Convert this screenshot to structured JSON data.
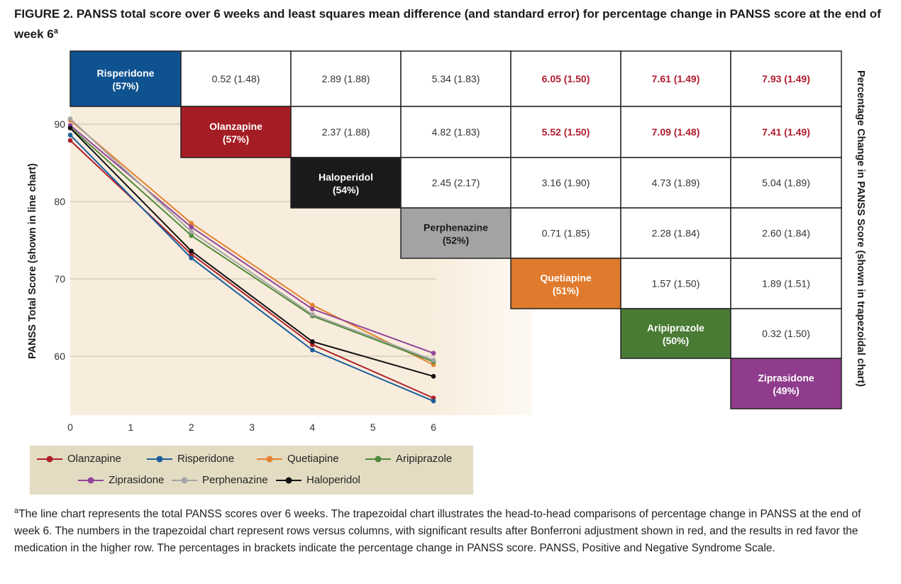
{
  "title": "FIGURE 2. PANSS total score over 6 weeks and least squares mean difference (and standard error) for percentage change in PANSS score at the end of week 6",
  "title_superscript": "a",
  "footnote_marker": "a",
  "footnote": "The line chart represents the total PANSS scores over 6 weeks. The trapezoidal chart illustrates the head-to-head comparisons of percentage change in PANSS at the end of week 6. The numbers in the trapezoidal chart represent rows versus columns, with significant results after Bonferroni adjustment shown in red, and the results in red favor the medication in the higher row. The percentages in brackets indicate the percentage change in PANSS score. PANSS, Positive and Negative Syndrome Scale.",
  "chart_data": [
    {
      "type": "line",
      "xlabel": "",
      "ylabel": "PANSS Total Score (shown in line chart)",
      "x": [
        0,
        2,
        4,
        6
      ],
      "x_ticks": [
        "0",
        "1",
        "2",
        "3",
        "4",
        "5",
        "6"
      ],
      "y_ticks": [
        "60",
        "70",
        "80",
        "90"
      ],
      "xlim": [
        0,
        6
      ],
      "ylim": [
        52.5,
        92.5
      ],
      "grid": "horizontal",
      "legend_position": "bottom",
      "series": [
        {
          "name": "Olanzapine",
          "color": "#b0202a",
          "values": [
            87.9,
            73.2,
            61.5,
            54.6
          ]
        },
        {
          "name": "Risperidone",
          "color": "#1b5e9a",
          "values": [
            88.6,
            72.7,
            60.8,
            54.2
          ]
        },
        {
          "name": "Quetiapine",
          "color": "#e5832f",
          "values": [
            90.5,
            77.2,
            66.6,
            58.9
          ]
        },
        {
          "name": "Aripiprazole",
          "color": "#4f8a3a",
          "values": [
            89.6,
            75.6,
            65.2,
            59.3
          ]
        },
        {
          "name": "Ziprasidone",
          "color": "#93459a",
          "values": [
            89.85,
            76.7,
            66.1,
            60.4
          ]
        },
        {
          "name": "Perphenazine",
          "color": "#a5a5a5",
          "values": [
            90.7,
            76.1,
            65.4,
            59.5
          ]
        },
        {
          "name": "Haloperidol",
          "color": "#111111",
          "values": [
            89.5,
            73.6,
            61.9,
            57.4
          ]
        }
      ]
    },
    {
      "type": "table",
      "ylabel": "Percentage Change in PANSS Score (shown in trapezoidal chart)",
      "significant_color": "#b01c2e",
      "rows": [
        {
          "drug": "Risperidone",
          "pct": "(57%)",
          "color": "#0f5290",
          "cells": [
            [
              "0.52 (1.48)",
              false
            ],
            [
              "2.89 (1.88)",
              false
            ],
            [
              "5.34 (1.83)",
              false
            ],
            [
              "6.05 (1.50)",
              true
            ],
            [
              "7.61 (1.49)",
              true
            ],
            [
              "7.93 (1.49)",
              true
            ]
          ]
        },
        {
          "drug": "Olanzapine",
          "pct": "(57%)",
          "color": "#a51d24",
          "cells": [
            [
              "2.37 (1.88)",
              false
            ],
            [
              "4.82 (1.83)",
              false
            ],
            [
              "5.52 (1.50)",
              true
            ],
            [
              "7.09 (1.48)",
              true
            ],
            [
              "7.41 (1.49)",
              true
            ]
          ]
        },
        {
          "drug": "Haloperidol",
          "pct": "(54%)",
          "color": "#1a1a1a",
          "cells": [
            [
              "2.45 (2.17)",
              false
            ],
            [
              "3.16 (1.90)",
              false
            ],
            [
              "4.73 (1.89)",
              false
            ],
            [
              "5.04 (1.89)",
              false
            ]
          ]
        },
        {
          "drug": "Perphenazine",
          "pct": "(52%)",
          "color": "#a3a3a3",
          "text_color": "#1a1a1a",
          "cells": [
            [
              "0.71 (1.85)",
              false
            ],
            [
              "2.28 (1.84)",
              false
            ],
            [
              "2.60 (1.84)",
              false
            ]
          ]
        },
        {
          "drug": "Quetiapine",
          "pct": "(51%)",
          "color": "#e07a2c",
          "cells": [
            [
              "1.57 (1.50)",
              false
            ],
            [
              "1.89 (1.51)",
              false
            ]
          ]
        },
        {
          "drug": "Aripiprazole",
          "pct": "(50%)",
          "color": "#4a7b35",
          "cells": [
            [
              "0.32 (1.50)",
              false
            ]
          ]
        },
        {
          "drug": "Ziprasidone",
          "pct": "(49%)",
          "color": "#8f3c8c",
          "cells": []
        }
      ]
    }
  ]
}
